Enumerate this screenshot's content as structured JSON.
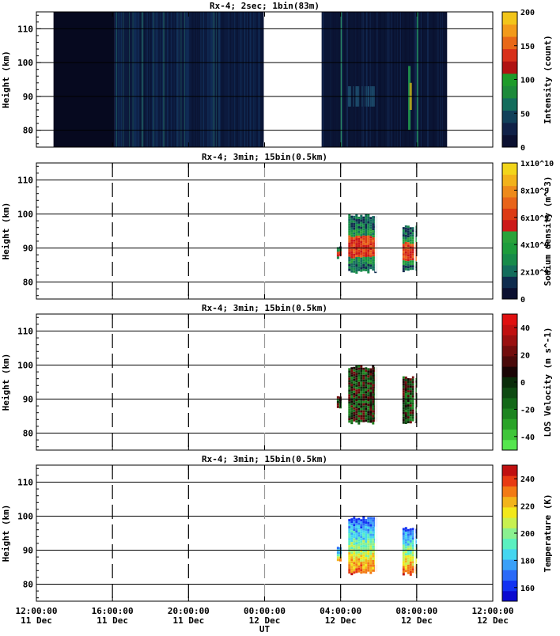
{
  "x_ticks": [
    {
      "t": 0,
      "time": "12:00:00",
      "date": "11 Dec"
    },
    {
      "t": 4,
      "time": "16:00:00",
      "date": "11 Dec"
    },
    {
      "t": 8,
      "time": "20:00:00",
      "date": "11 Dec"
    },
    {
      "t": 12,
      "time": "00:00:00",
      "date": "12 Dec"
    },
    {
      "t": 16,
      "time": "04:00:00",
      "date": "12 Dec"
    },
    {
      "t": 20,
      "time": "08:00:00",
      "date": "12 Dec"
    },
    {
      "t": 24,
      "time": "12:00:00",
      "date": "12 Dec"
    }
  ],
  "x_label": "UT",
  "chart_data": [
    {
      "type": "heatmap",
      "title": "Rx-4;  2sec; 1bin(83m)",
      "ylabel": "Height (km)",
      "ylim": [
        75,
        115
      ],
      "yticks": [
        80,
        90,
        100,
        110
      ],
      "xlim": [
        "12:00:00 11 Dec",
        "12:00:00 12 Dec"
      ],
      "colorbar": {
        "label": "Intensity (count)",
        "range": [
          0,
          200
        ],
        "ticks": [
          "0",
          "50",
          "100",
          "150",
          "200"
        ],
        "colors": [
          "#0b1030",
          "#102148",
          "#11405a",
          "#136d5c",
          "#1d8a3a",
          "#1e9b2a",
          "#b01212",
          "#d8301a",
          "#e86818",
          "#f29a1a",
          "#f2c51a"
        ]
      },
      "data_spans": [
        {
          "start_h": 0.0,
          "end_h": 2.1,
          "level": "near 0"
        },
        {
          "start_h": 2.1,
          "end_h": 4.1,
          "level": "near 0"
        },
        {
          "start_h": 4.1,
          "end_h": 11.95,
          "level": "about 20"
        },
        {
          "start_h": 15.0,
          "end_h": 21.6,
          "level": "about 15, peak near 90 km around 07:00 12 Dec"
        }
      ]
    },
    {
      "type": "heatmap",
      "title": "Rx-4; 3min; 15bin(0.5km)",
      "ylabel": "Height (km)",
      "ylim": [
        75,
        115
      ],
      "yticks": [
        80,
        90,
        100,
        110
      ],
      "colorbar": {
        "label": "Sodium density (m^-3)",
        "range": [
          0,
          10000000000.0
        ],
        "ticks": [
          "0",
          "2x10^9",
          "4x10^9",
          "6x10^9",
          "8x10^9",
          "1x10^10"
        ],
        "colors": [
          "#0b1030",
          "#0f2c4e",
          "#136d5c",
          "#178b4a",
          "#1d9c3c",
          "#2aa23a",
          "#cc1818",
          "#dc3a14",
          "#e8641a",
          "#ee8a1a",
          "#f2b21a",
          "#f2d51a"
        ]
      },
      "data_blocks": [
        {
          "start_h": 15.8,
          "end_h": 15.95,
          "height_km": [
            87,
            91
          ]
        },
        {
          "start_h": 16.4,
          "end_h": 17.85,
          "height_km": [
            83,
            100
          ]
        },
        {
          "start_h": 19.25,
          "end_h": 19.9,
          "height_km": [
            83,
            97
          ]
        }
      ]
    },
    {
      "type": "heatmap",
      "title": "Rx-4; 3min; 15bin(0.5km)",
      "ylabel": "Height (km)",
      "ylim": [
        75,
        115
      ],
      "yticks": [
        80,
        90,
        100,
        110
      ],
      "colorbar": {
        "label": "LOS Velocity (m s^-1)",
        "range": [
          -50,
          50
        ],
        "ticks": [
          "-40",
          "-20",
          "0",
          "20",
          "40"
        ],
        "colors": [
          "#55e64e",
          "#3fc63a",
          "#2aa328",
          "#1d8420",
          "#136818",
          "#0e4a12",
          "#0a2c0a",
          "#1a0505",
          "#4a0a0a",
          "#720d0d",
          "#9a1010",
          "#c01010",
          "#e01010"
        ]
      },
      "data_blocks": [
        {
          "start_h": 15.8,
          "end_h": 15.95,
          "height_km": [
            87,
            91
          ]
        },
        {
          "start_h": 16.4,
          "end_h": 17.85,
          "height_km": [
            83,
            100
          ]
        },
        {
          "start_h": 19.25,
          "end_h": 19.9,
          "height_km": [
            83,
            97
          ]
        }
      ]
    },
    {
      "type": "heatmap",
      "title": "Rx-4; 3min; 15bin(0.5km)",
      "ylabel": "Height (km)",
      "ylim": [
        75,
        115
      ],
      "yticks": [
        80,
        90,
        100,
        110
      ],
      "colorbar": {
        "label": "Temperature (K)",
        "range": [
          150,
          250
        ],
        "ticks": [
          "160",
          "180",
          "200",
          "220",
          "240"
        ],
        "colors": [
          "#0a0ad0",
          "#1232f2",
          "#2a6af8",
          "#3aa0f8",
          "#44d6f0",
          "#5af0c0",
          "#8af090",
          "#c8f050",
          "#f2e81a",
          "#f2b41a",
          "#f27a14",
          "#e83a12",
          "#c01010"
        ]
      },
      "data_blocks": [
        {
          "start_h": 15.8,
          "end_h": 15.95,
          "height_km": [
            87,
            91
          ]
        },
        {
          "start_h": 16.4,
          "end_h": 17.85,
          "height_km": [
            83,
            100
          ]
        },
        {
          "start_h": 19.25,
          "end_h": 19.9,
          "height_km": [
            83,
            97
          ]
        }
      ]
    }
  ]
}
